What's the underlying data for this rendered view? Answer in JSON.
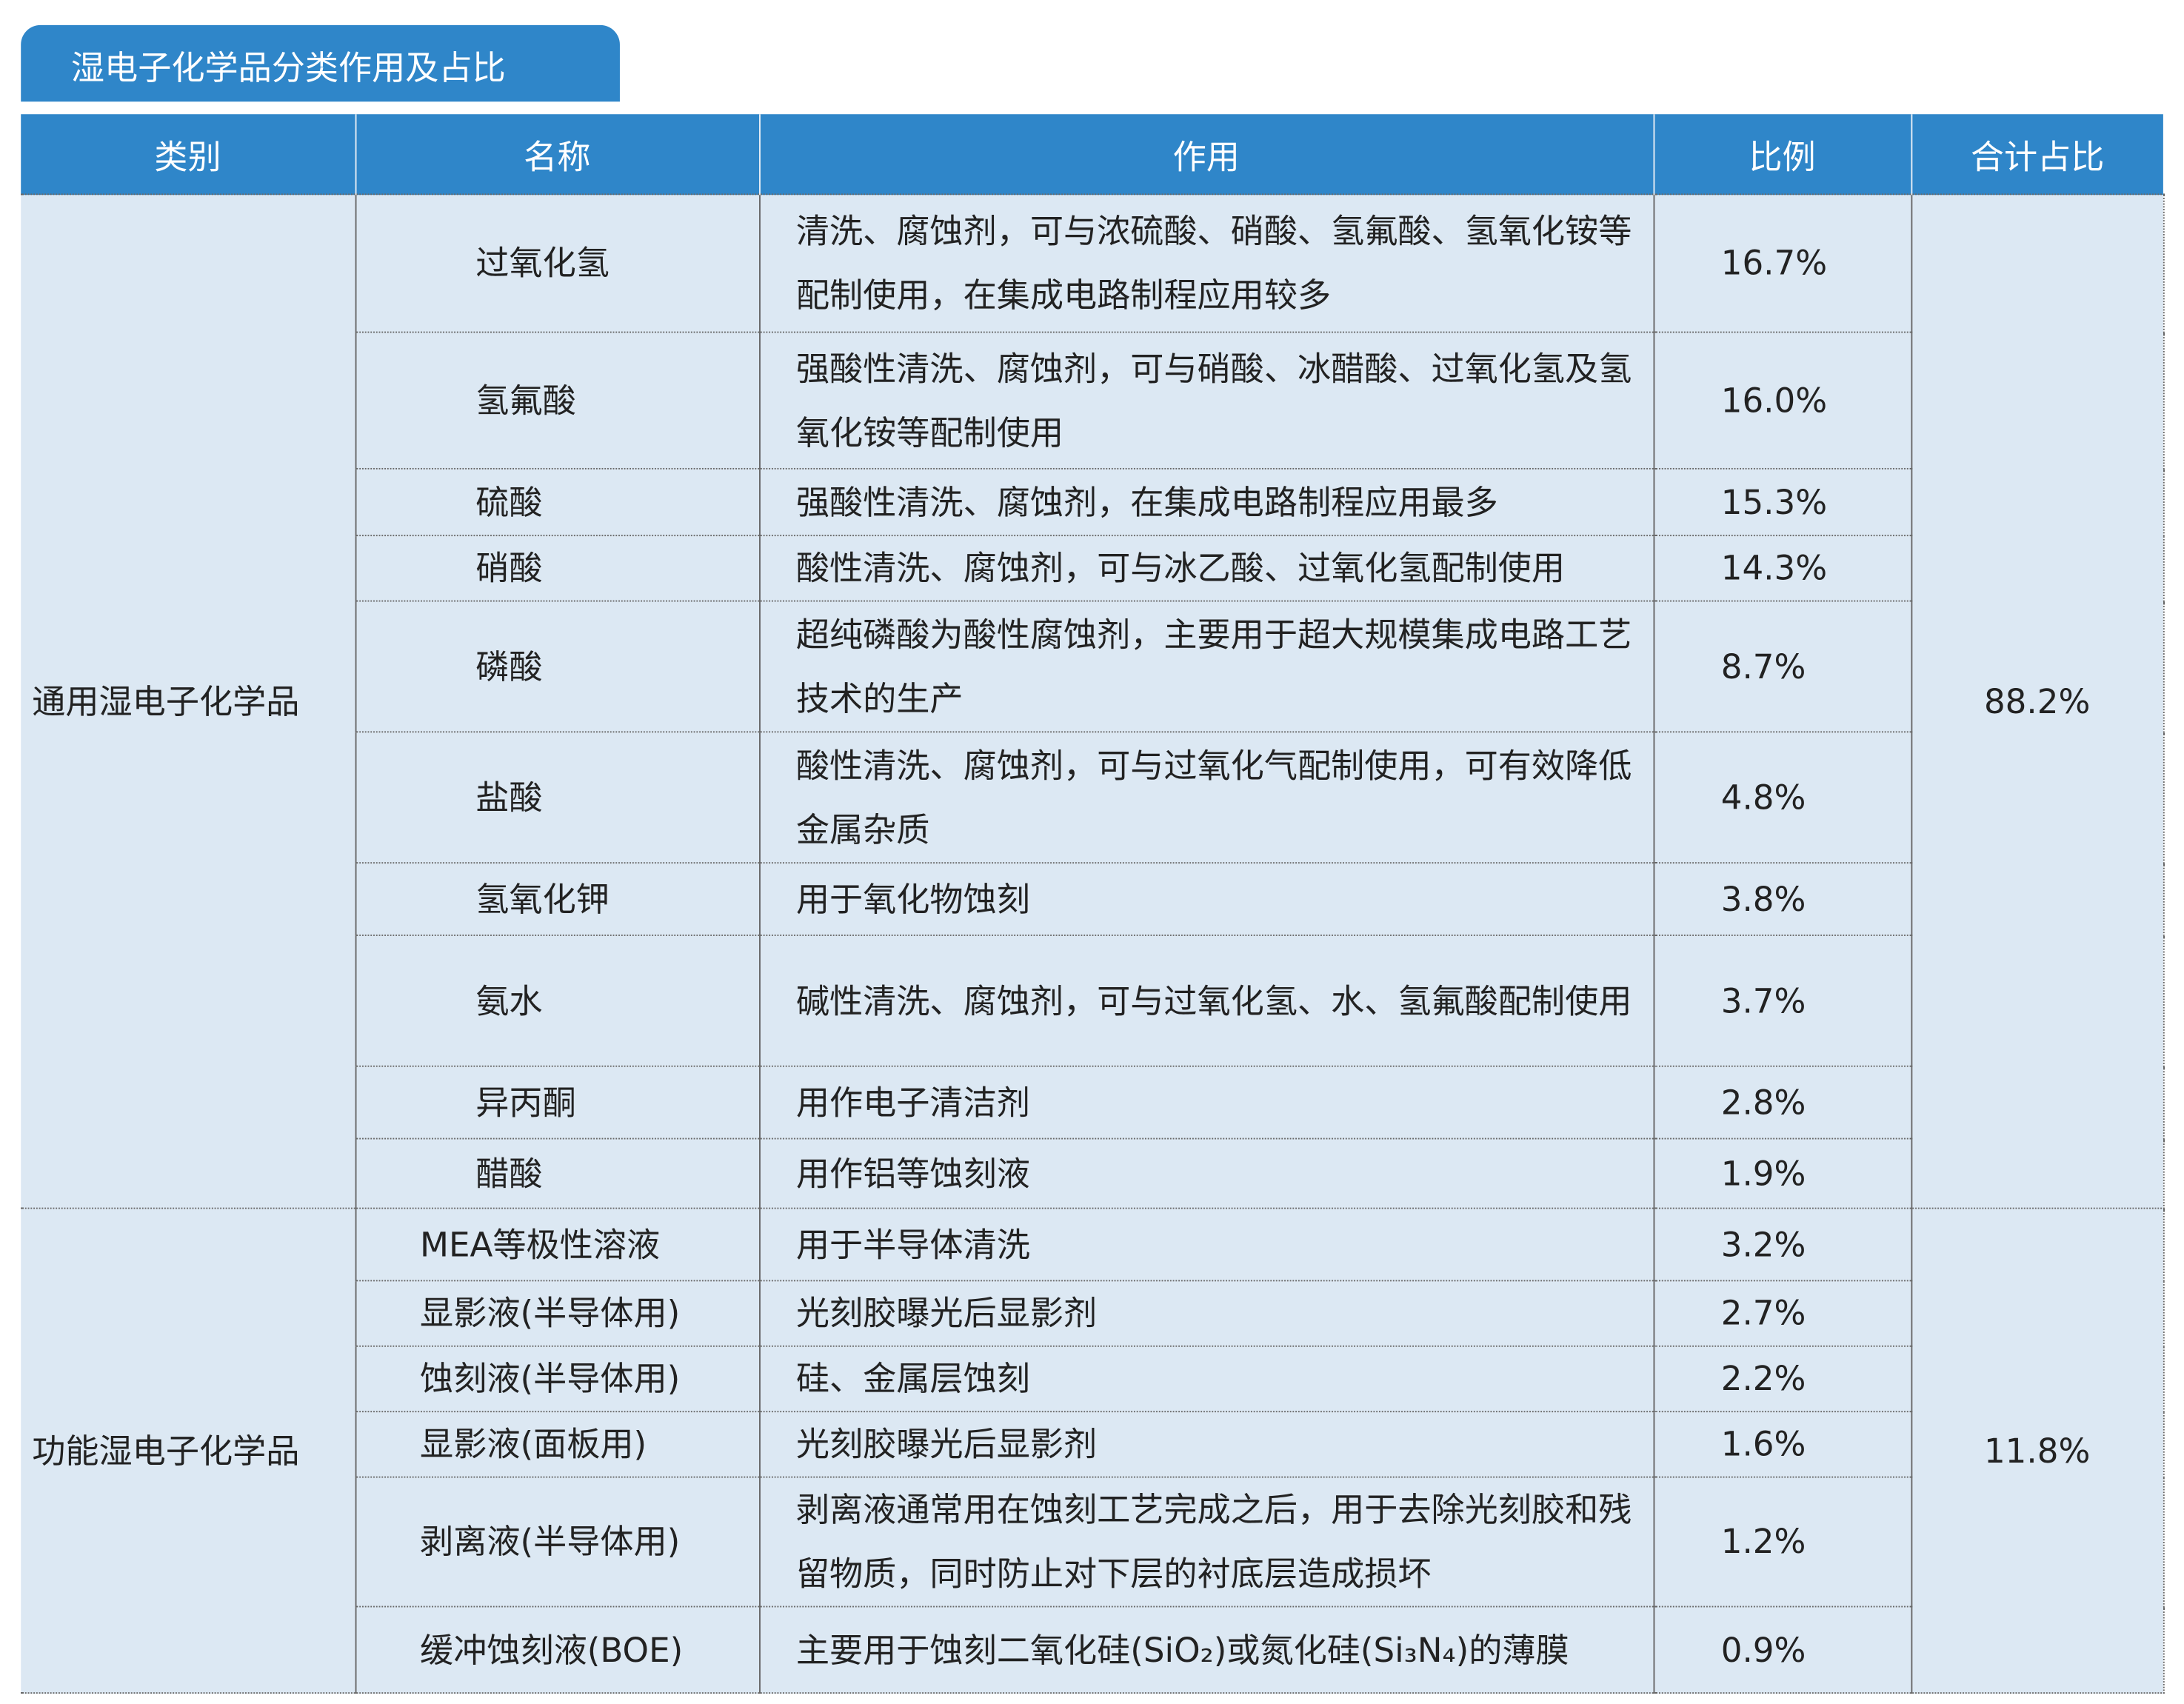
{
  "header": {
    "title": "湿电子化学品分类作用及占比"
  },
  "table": {
    "columns": [
      "类别",
      "名称",
      "作用",
      "比例",
      "合计占比"
    ],
    "groups": [
      {
        "category": "通用湿电子化学品",
        "total": "88.2%",
        "rows": [
          {
            "name": "过氧化氢",
            "use": "清洗、腐蚀剂，可与浓硫酸、硝酸、氢氟酸、氢氧化铵等配制使用，在集成电路制程应用较多",
            "ratio": "16.7%"
          },
          {
            "name": "氢氟酸",
            "use": "强酸性清洗、腐蚀剂，可与硝酸、冰醋酸、过氧化氢及氢氧化铵等配制使用",
            "ratio": "16.0%"
          },
          {
            "name": "硫酸",
            "use": "强酸性清洗、腐蚀剂，在集成电路制程应用最多",
            "ratio": "15.3%"
          },
          {
            "name": "硝酸",
            "use": "酸性清洗、腐蚀剂，可与冰乙酸、过氧化氢配制使用",
            "ratio": "14.3%"
          },
          {
            "name": "磷酸",
            "use": "超纯磷酸为酸性腐蚀剂，主要用于超大规模集成电路工艺技术的生产",
            "ratio": "8.7%"
          },
          {
            "name": "盐酸",
            "use": "酸性清洗、腐蚀剂，可与过氧化气配制使用，可有效降低金属杂质",
            "ratio": "4.8%"
          },
          {
            "name": "氢氧化钾",
            "use": "用于氧化物蚀刻",
            "ratio": "3.8%"
          },
          {
            "name": "氨水",
            "use": "碱性清洗、腐蚀剂，可与过氧化氢、水、氢氟酸配制使用",
            "ratio": "3.7%"
          },
          {
            "name": "异丙酮",
            "use": "用作电子清洁剂",
            "ratio": "2.8%"
          },
          {
            "name": "醋酸",
            "use": "用作铝等蚀刻液",
            "ratio": "1.9%"
          }
        ]
      },
      {
        "category": "功能湿电子化学品",
        "total": "11.8%",
        "rows": [
          {
            "name": "MEA等极性溶液",
            "use": "用于半导体清洗",
            "ratio": "3.2%"
          },
          {
            "name": "显影液(半导体用)",
            "use": "光刻胶曝光后显影剂",
            "ratio": "2.7%"
          },
          {
            "name": "蚀刻液(半导体用)",
            "use": "硅、金属层蚀刻",
            "ratio": "2.2%"
          },
          {
            "name": "显影液(面板用)",
            "use": "光刻胶曝光后显影剂",
            "ratio": "1.6%"
          },
          {
            "name": "剥离液(半导体用)",
            "use": "剥离液通常用在蚀刻工艺完成之后，用于去除光刻胶和残留物质，同时防止对下层的衬底层造成损坏",
            "ratio": "1.2%"
          },
          {
            "name": "缓冲蚀刻液(BOE)",
            "use": "主要用于蚀刻二氧化硅(SiO₂)或氮化硅(Si₃N₄)的薄膜",
            "ratio": "0.9%"
          }
        ]
      }
    ]
  }
}
